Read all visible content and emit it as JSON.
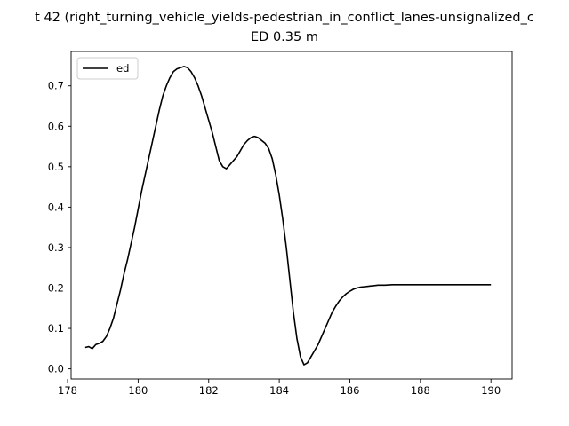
{
  "chart_data": {
    "type": "line",
    "title_line1": "t 42 (right_turning_vehicle_yields-pedestrian_in_conflict_lanes-unsignalized_c",
    "title_line2": "ED 0.35 m",
    "xlabel": "",
    "ylabel": "",
    "xlim": [
      178.1,
      190.6
    ],
    "ylim": [
      -0.025,
      0.785
    ],
    "xticks": [
      178,
      180,
      182,
      184,
      186,
      188,
      190
    ],
    "yticks": [
      0.0,
      0.1,
      0.2,
      0.3,
      0.4,
      0.5,
      0.6,
      0.7
    ],
    "ytick_labels": [
      "0.0",
      "0.1",
      "0.2",
      "0.3",
      "0.4",
      "0.5",
      "0.6",
      "0.7"
    ],
    "grid": false,
    "legend_position": "upper-left",
    "series": [
      {
        "name": "ed",
        "color": "#000000",
        "x": [
          178.5,
          178.6,
          178.7,
          178.8,
          178.9,
          179.0,
          179.1,
          179.2,
          179.3,
          179.4,
          179.5,
          179.6,
          179.7,
          179.8,
          179.9,
          180.0,
          180.1,
          180.2,
          180.3,
          180.4,
          180.5,
          180.6,
          180.7,
          180.8,
          180.9,
          181.0,
          181.1,
          181.2,
          181.3,
          181.4,
          181.5,
          181.6,
          181.7,
          181.8,
          181.9,
          182.0,
          182.1,
          182.2,
          182.3,
          182.4,
          182.5,
          182.6,
          182.7,
          182.8,
          182.9,
          183.0,
          183.1,
          183.2,
          183.3,
          183.4,
          183.5,
          183.6,
          183.7,
          183.8,
          183.9,
          184.0,
          184.1,
          184.2,
          184.3,
          184.4,
          184.5,
          184.6,
          184.7,
          184.8,
          184.9,
          185.0,
          185.1,
          185.2,
          185.3,
          185.4,
          185.5,
          185.6,
          185.7,
          185.8,
          185.9,
          186.0,
          186.1,
          186.2,
          186.3,
          186.4,
          186.5,
          186.6,
          186.7,
          186.8,
          186.9,
          187.0,
          187.2,
          187.4,
          187.6,
          187.8,
          188.0,
          188.3,
          188.6,
          189.0,
          189.5,
          190.0
        ],
        "y": [
          0.053,
          0.055,
          0.05,
          0.06,
          0.063,
          0.068,
          0.08,
          0.1,
          0.125,
          0.16,
          0.195,
          0.235,
          0.27,
          0.31,
          0.35,
          0.395,
          0.44,
          0.48,
          0.52,
          0.56,
          0.6,
          0.64,
          0.675,
          0.7,
          0.72,
          0.735,
          0.742,
          0.745,
          0.748,
          0.745,
          0.735,
          0.72,
          0.7,
          0.675,
          0.645,
          0.615,
          0.585,
          0.55,
          0.515,
          0.5,
          0.495,
          0.505,
          0.515,
          0.525,
          0.54,
          0.555,
          0.565,
          0.572,
          0.575,
          0.572,
          0.565,
          0.558,
          0.545,
          0.52,
          0.48,
          0.43,
          0.37,
          0.3,
          0.22,
          0.14,
          0.075,
          0.03,
          0.01,
          0.015,
          0.03,
          0.045,
          0.06,
          0.08,
          0.1,
          0.12,
          0.14,
          0.155,
          0.168,
          0.178,
          0.186,
          0.192,
          0.197,
          0.2,
          0.202,
          0.203,
          0.204,
          0.205,
          0.206,
          0.207,
          0.207,
          0.207,
          0.208,
          0.208,
          0.208,
          0.208,
          0.208,
          0.208,
          0.208,
          0.208,
          0.208,
          0.208
        ]
      }
    ]
  }
}
